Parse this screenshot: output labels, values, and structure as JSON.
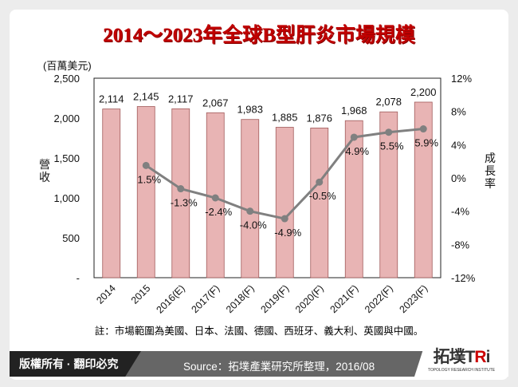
{
  "title": "2014～2023年全球B型肝炎市場規模",
  "footer": {
    "copyright": "版權所有 · 翻印必究",
    "source": "Source：拓墣產業研究所整理，2016/08",
    "logo_text": "拓墣TRi",
    "logo_sub": "TOPOLOGY RESEARCH INSTITUTE"
  },
  "chart_data": {
    "type": "bar+line",
    "categories": [
      "2014",
      "2015",
      "2016(E)",
      "2017(F)",
      "2018(F)",
      "2019(F)",
      "2020(F)",
      "2021(F)",
      "2022(F)",
      "2023(F)"
    ],
    "series": [
      {
        "axis": "left",
        "type": "bar",
        "values": [
          2114,
          2145,
          2117,
          2067,
          1983,
          1885,
          1876,
          1968,
          2078,
          2200
        ],
        "labels": [
          "2,114",
          "2,145",
          "2,117",
          "2,067",
          "1,983",
          "1,885",
          "1,876",
          "1,968",
          "2,078",
          "2,200"
        ],
        "color": "#e8b4b4"
      },
      {
        "axis": "right",
        "type": "line",
        "values": [
          null,
          1.5,
          -1.3,
          -2.4,
          -4.0,
          -4.9,
          -0.5,
          4.9,
          5.5,
          5.9
        ],
        "labels": [
          "",
          "1.5%",
          "-1.3%",
          "-2.4%",
          "-4.0%",
          "-4.9%",
          "-0.5%",
          "4.9%",
          "5.5%",
          "5.9%"
        ],
        "color": "#808080"
      }
    ],
    "left_unit": "(百萬美元)",
    "ylabel": "營收",
    "y2label": "成長率",
    "ylim": [
      0,
      2500
    ],
    "yticks": [
      "-",
      "500",
      "1,000",
      "1,500",
      "2,000",
      "2,500"
    ],
    "y2lim": [
      -12,
      12
    ],
    "y2ticks": [
      "-12%",
      "-8%",
      "-4%",
      "0%",
      "4%",
      "8%",
      "12%"
    ],
    "note": "註：市場範圍為美國、日本、法國、德國、西班牙、義大利、英國與中國。"
  }
}
